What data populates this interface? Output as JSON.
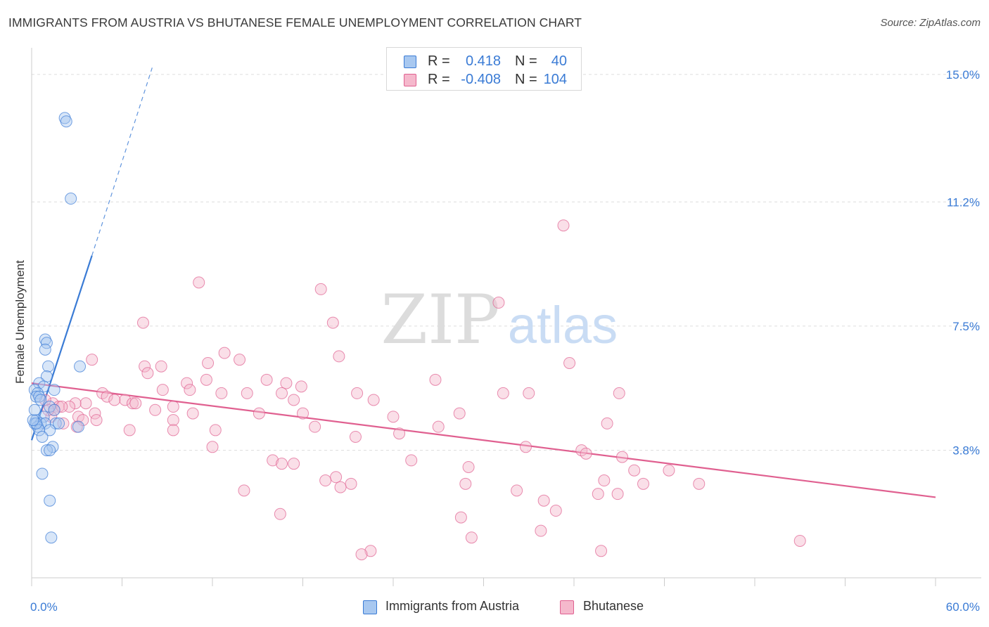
{
  "title": "IMMIGRANTS FROM AUSTRIA VS BHUTANESE FEMALE UNEMPLOYMENT CORRELATION CHART",
  "source": "Source: ZipAtlas.com",
  "watermark": {
    "zip": "ZIP",
    "atlas": "atlas"
  },
  "legend_stats": [
    {
      "r_label": "R =",
      "r_value": "0.418",
      "n_label": "N =",
      "n_value": "40",
      "color": "#a8c8f0"
    },
    {
      "r_label": "R =",
      "r_value": "-0.408",
      "n_label": "N =",
      "n_value": "104",
      "color": "#f5b8cc"
    }
  ],
  "bottom_legend": [
    {
      "label": "Immigrants from Austria",
      "color": "#a8c8f0"
    },
    {
      "label": "Bhutanese",
      "color": "#f5b8cc"
    }
  ],
  "chart_data": {
    "type": "scatter",
    "ylabel": "Female Unemployment",
    "xlim": [
      0,
      60
    ],
    "ylim": [
      0,
      15.5
    ],
    "x_tick_labels": [
      "0.0%",
      "60.0%"
    ],
    "y_ticks": [
      3.8,
      7.5,
      11.2,
      15.0
    ],
    "y_tick_labels": [
      "3.8%",
      "7.5%",
      "11.2%",
      "15.0%"
    ],
    "grid": true,
    "series": [
      {
        "name": "Immigrants from Austria",
        "color": "#3a7bd5",
        "fill": "#a8c8f0",
        "points": [
          [
            2.2,
            13.7
          ],
          [
            2.3,
            13.6
          ],
          [
            2.6,
            11.3
          ],
          [
            0.9,
            7.1
          ],
          [
            1.0,
            7.0
          ],
          [
            0.9,
            6.8
          ],
          [
            3.2,
            6.3
          ],
          [
            1.1,
            6.3
          ],
          [
            1.0,
            6.0
          ],
          [
            0.5,
            5.8
          ],
          [
            0.8,
            5.7
          ],
          [
            1.5,
            5.6
          ],
          [
            0.2,
            5.6
          ],
          [
            0.4,
            5.5
          ],
          [
            0.3,
            5.4
          ],
          [
            0.5,
            5.4
          ],
          [
            0.6,
            5.3
          ],
          [
            1.2,
            5.1
          ],
          [
            1.5,
            5.0
          ],
          [
            0.8,
            4.8
          ],
          [
            0.3,
            4.7
          ],
          [
            0.2,
            4.6
          ],
          [
            0.6,
            4.6
          ],
          [
            0.9,
            4.6
          ],
          [
            1.6,
            4.6
          ],
          [
            1.8,
            4.6
          ],
          [
            0.4,
            4.5
          ],
          [
            3.1,
            4.5
          ],
          [
            1.2,
            4.4
          ],
          [
            0.5,
            4.4
          ],
          [
            0.7,
            4.2
          ],
          [
            0.3,
            4.6
          ],
          [
            1.4,
            3.9
          ],
          [
            1.0,
            3.8
          ],
          [
            1.2,
            3.8
          ],
          [
            0.7,
            3.1
          ],
          [
            1.2,
            2.3
          ],
          [
            1.3,
            1.2
          ],
          [
            0.1,
            4.7
          ],
          [
            0.2,
            5.0
          ]
        ]
      },
      {
        "name": "Bhutanese",
        "color": "#e06090",
        "fill": "#f5b8cc",
        "points": [
          [
            35.3,
            10.5
          ],
          [
            11.1,
            8.8
          ],
          [
            19.2,
            8.6
          ],
          [
            31.0,
            8.2
          ],
          [
            7.4,
            7.6
          ],
          [
            20.0,
            7.6
          ],
          [
            12.8,
            6.7
          ],
          [
            20.4,
            6.6
          ],
          [
            4.0,
            6.5
          ],
          [
            13.8,
            6.5
          ],
          [
            11.7,
            6.4
          ],
          [
            35.7,
            6.4
          ],
          [
            7.5,
            6.3
          ],
          [
            8.6,
            6.3
          ],
          [
            7.7,
            6.1
          ],
          [
            10.3,
            5.8
          ],
          [
            11.6,
            5.9
          ],
          [
            15.6,
            5.9
          ],
          [
            16.9,
            5.8
          ],
          [
            26.8,
            5.9
          ],
          [
            8.7,
            5.6
          ],
          [
            10.5,
            5.6
          ],
          [
            12.6,
            5.5
          ],
          [
            14.3,
            5.5
          ],
          [
            16.6,
            5.5
          ],
          [
            17.9,
            5.7
          ],
          [
            21.6,
            5.5
          ],
          [
            31.3,
            5.5
          ],
          [
            33.0,
            5.5
          ],
          [
            39.0,
            5.5
          ],
          [
            4.7,
            5.5
          ],
          [
            5.0,
            5.4
          ],
          [
            6.2,
            5.3
          ],
          [
            3.6,
            5.2
          ],
          [
            2.9,
            5.2
          ],
          [
            5.5,
            5.3
          ],
          [
            6.7,
            5.2
          ],
          [
            6.9,
            5.2
          ],
          [
            17.4,
            5.3
          ],
          [
            22.7,
            5.3
          ],
          [
            9.4,
            5.1
          ],
          [
            1.4,
            5.2
          ],
          [
            1.8,
            5.1
          ],
          [
            2.5,
            5.1
          ],
          [
            4.2,
            4.9
          ],
          [
            1.5,
            5.0
          ],
          [
            8.2,
            5.0
          ],
          [
            10.7,
            4.9
          ],
          [
            15.1,
            4.9
          ],
          [
            18.0,
            4.9
          ],
          [
            28.4,
            4.9
          ],
          [
            1.3,
            4.8
          ],
          [
            3.1,
            4.8
          ],
          [
            3.4,
            4.7
          ],
          [
            4.3,
            4.7
          ],
          [
            9.4,
            4.7
          ],
          [
            24.0,
            4.8
          ],
          [
            2.1,
            4.6
          ],
          [
            3.0,
            4.5
          ],
          [
            18.8,
            4.5
          ],
          [
            27.0,
            4.5
          ],
          [
            38.2,
            4.6
          ],
          [
            6.5,
            4.4
          ],
          [
            9.4,
            4.4
          ],
          [
            12.2,
            4.4
          ],
          [
            24.4,
            4.3
          ],
          [
            21.5,
            4.2
          ],
          [
            12.0,
            3.9
          ],
          [
            32.8,
            3.9
          ],
          [
            36.5,
            3.8
          ],
          [
            36.8,
            3.7
          ],
          [
            39.2,
            3.6
          ],
          [
            16.0,
            3.5
          ],
          [
            25.2,
            3.5
          ],
          [
            16.6,
            3.4
          ],
          [
            17.4,
            3.4
          ],
          [
            29.0,
            3.3
          ],
          [
            40.0,
            3.2
          ],
          [
            42.3,
            3.2
          ],
          [
            20.2,
            3.0
          ],
          [
            19.5,
            2.9
          ],
          [
            21.2,
            2.8
          ],
          [
            28.8,
            2.8
          ],
          [
            38.0,
            2.9
          ],
          [
            40.6,
            2.8
          ],
          [
            44.3,
            2.8
          ],
          [
            20.5,
            2.7
          ],
          [
            14.1,
            2.6
          ],
          [
            32.2,
            2.6
          ],
          [
            37.6,
            2.5
          ],
          [
            38.9,
            2.5
          ],
          [
            34.0,
            2.3
          ],
          [
            34.8,
            2.0
          ],
          [
            16.5,
            1.9
          ],
          [
            28.5,
            1.8
          ],
          [
            33.8,
            1.4
          ],
          [
            29.2,
            1.2
          ],
          [
            51.0,
            1.1
          ],
          [
            22.5,
            0.8
          ],
          [
            21.9,
            0.7
          ],
          [
            37.8,
            0.8
          ],
          [
            1.1,
            5.0
          ],
          [
            2.0,
            5.1
          ],
          [
            0.9,
            5.3
          ]
        ]
      }
    ],
    "trendlines": [
      {
        "series": "Immigrants from Austria",
        "solid_from": [
          0.0,
          4.1
        ],
        "solid_to": [
          4.0,
          9.6
        ],
        "dashed_to": [
          8.0,
          15.2
        ]
      },
      {
        "series": "Bhutanese",
        "from": [
          0.0,
          5.8
        ],
        "to": [
          60.0,
          2.4
        ]
      }
    ]
  }
}
